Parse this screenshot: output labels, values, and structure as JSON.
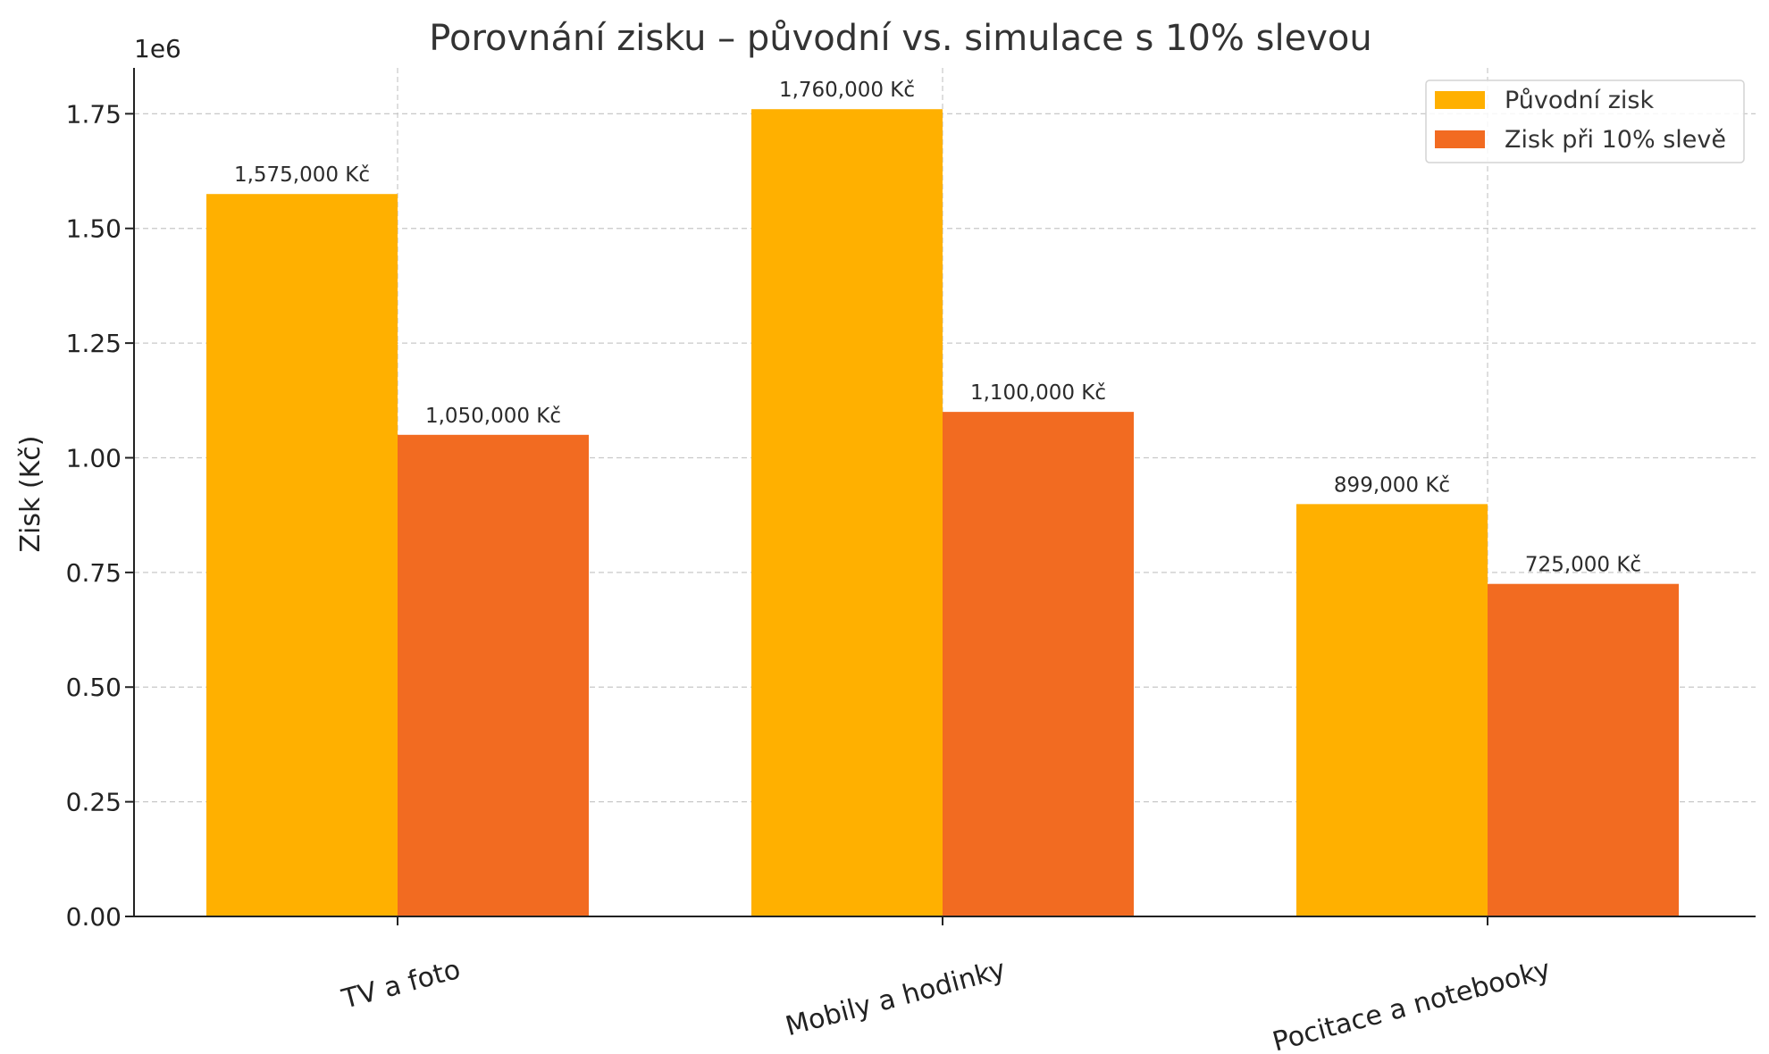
{
  "chart_data": {
    "type": "bar",
    "title": "Porovnání zisku – původní vs. simulace s 10% slevou",
    "xlabel": "",
    "ylabel": "Zisk (Kč)",
    "y_offset_label": "1e6",
    "categories": [
      "TV a foto",
      "Mobily a hodinky",
      "Pocitace a notebooky"
    ],
    "series": [
      {
        "name": "Původní zisk",
        "color": "#FFB000",
        "values": [
          1575000,
          1760000,
          899000
        ],
        "labels": [
          "1,575,000 Kč",
          "1,760,000 Kč",
          "899,000 Kč"
        ]
      },
      {
        "name": "Zisk při 10% slevě",
        "color": "#F26B21",
        "values": [
          1050000,
          1100000,
          725000
        ],
        "labels": [
          "1,050,000 Kč",
          "1,100,000 Kč",
          "725,000 Kč"
        ]
      }
    ],
    "ylim": [
      0,
      1850000
    ],
    "yticks": [
      0,
      250000,
      500000,
      750000,
      1000000,
      1250000,
      1500000,
      1750000
    ],
    "ytick_labels": [
      "0.00",
      "0.25",
      "0.50",
      "0.75",
      "1.00",
      "1.25",
      "1.50",
      "1.75"
    ],
    "grid": true,
    "legend_position": "top-right"
  }
}
